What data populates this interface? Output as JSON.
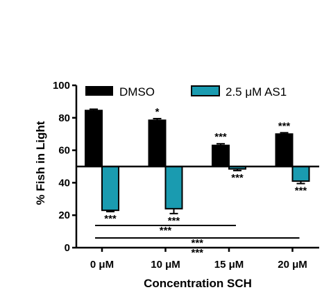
{
  "chart_data": {
    "type": "bar",
    "xlabel": "Concentration SCH",
    "ylabel": "% Fish in Light",
    "ylim": [
      0,
      100
    ],
    "yticks": [
      "0",
      "20",
      "40",
      "60",
      "80",
      "100"
    ],
    "categories": [
      "0 μM",
      "10 μM",
      "15 μM",
      "20 μM"
    ],
    "baseline": 50,
    "series": [
      {
        "name": "DMSO",
        "color": "#000000",
        "values": [
          84.5,
          78.5,
          63,
          70
        ],
        "errors": [
          0.8,
          1.0,
          1.0,
          0.8
        ],
        "significance": [
          "",
          "*",
          "***",
          "***"
        ]
      },
      {
        "name": "2.5 μM AS1",
        "color": "#1a9bb0",
        "values": [
          23,
          24,
          48.5,
          41
        ],
        "errors": [
          0.8,
          3.0,
          1.0,
          1.5
        ],
        "significance": [
          "***",
          "***",
          "***",
          "***"
        ]
      }
    ],
    "comparisons": [
      {
        "from": 0,
        "to": 2,
        "label": "***"
      },
      {
        "from": 0,
        "to": 3,
        "label": "***"
      },
      {
        "from": 0,
        "to": 3,
        "label": "***"
      }
    ],
    "legend_position": "top"
  }
}
